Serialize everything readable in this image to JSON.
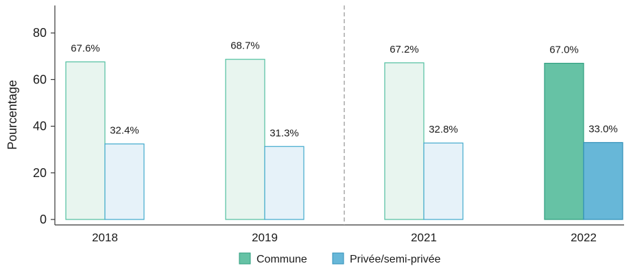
{
  "chart_data": {
    "type": "bar",
    "categories": [
      "2018",
      "2019",
      "2021",
      "2022"
    ],
    "series": [
      {
        "name": "Commune",
        "values": [
          67.6,
          68.7,
          67.2,
          67.0
        ]
      },
      {
        "name": "Privée/semi-privée",
        "values": [
          32.4,
          31.3,
          32.8,
          33.0
        ]
      }
    ],
    "data_labels": [
      [
        "67.6%",
        "32.4%"
      ],
      [
        "68.7%",
        "31.3%"
      ],
      [
        "67.2%",
        "32.8%"
      ],
      [
        "67.0%",
        "33.0%"
      ]
    ],
    "ylabel": "Pourcentage",
    "xlabel": "",
    "ylim": [
      0,
      90
    ],
    "yticks": [
      0,
      20,
      40,
      60,
      80
    ],
    "highlight_category": "2022",
    "separator_after_category": "2019",
    "legend_placement": "bottom-center",
    "grid": false,
    "colors": {
      "commune_fill": "#e8f5ef",
      "commune_stroke": "#4fbf9f",
      "commune_highlight": "#66c2a5",
      "commune_highlight_stroke": "#2e9e7e",
      "private_fill": "#e6f2f9",
      "private_stroke": "#3ea8cc",
      "private_highlight": "#67b7d8",
      "private_highlight_stroke": "#2f8fb8",
      "separator": "#999999",
      "axis": "#333333"
    }
  }
}
